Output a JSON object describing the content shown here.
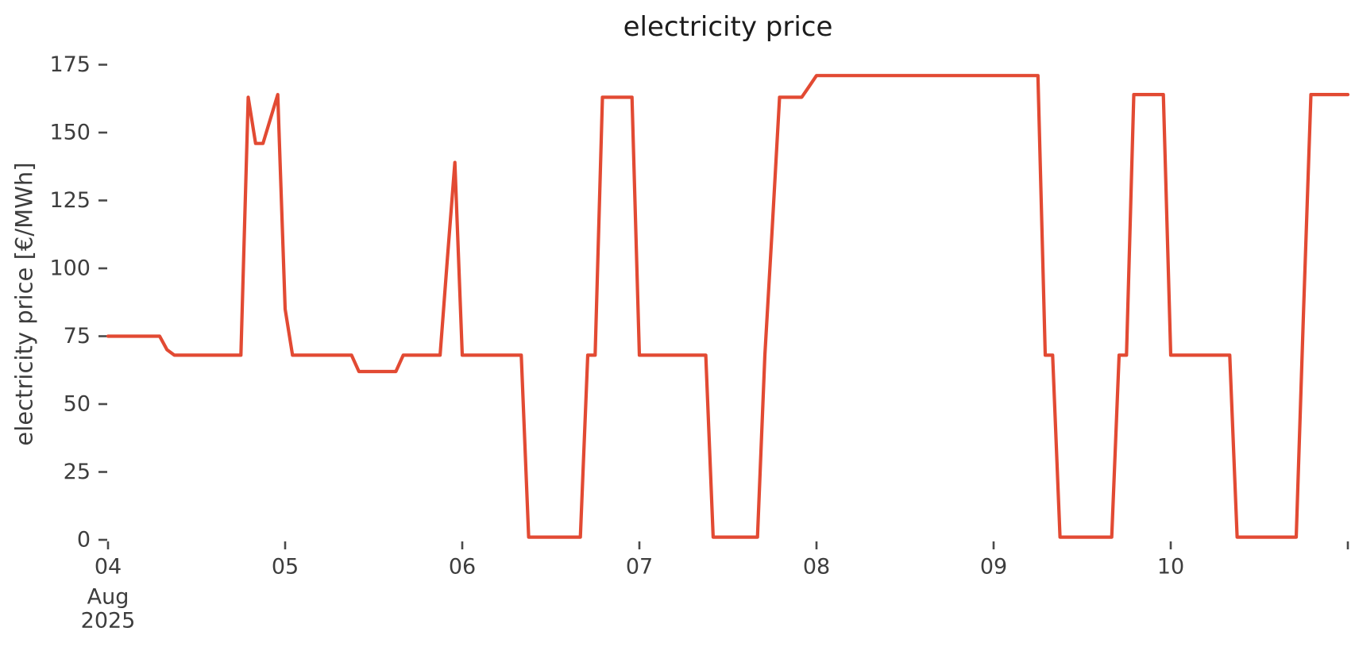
{
  "chart_data": {
    "type": "line",
    "title": "electricity price",
    "ylabel": "electricity price [€/MWh]",
    "xlabel": "",
    "grid": false,
    "legend": "none",
    "line_color": "#e24a33",
    "tick_color": "#4a4a4a",
    "text_color": "#3d3d3d",
    "title_color": "#1c1c1c",
    "background_color": "#ffffff",
    "ylim": [
      0,
      175
    ],
    "y_ticks": [
      0,
      25,
      50,
      75,
      100,
      125,
      150,
      175
    ],
    "x_axis": {
      "start": "2025-08-04 00:00",
      "end": "2025-08-11 00:00",
      "tick_labels": [
        "04",
        "05",
        "06",
        "07",
        "08",
        "09",
        "10"
      ],
      "first_tick_sublabels": [
        "Aug",
        "2025"
      ],
      "extra_unlabeled_right_tick": true,
      "frequency": "hourly"
    },
    "series": [
      {
        "name": "electricity price",
        "unit": "€/MWh",
        "days": [
          {
            "date": "2025-08-04",
            "prices": [
              75,
              75,
              75,
              75,
              75,
              75,
              75,
              75,
              70,
              68,
              68,
              68,
              68,
              68,
              68,
              68,
              68,
              68,
              68,
              163,
              146,
              146,
              155,
              164
            ]
          },
          {
            "date": "2025-08-05",
            "prices": [
              85,
              68,
              68,
              68,
              68,
              68,
              68,
              68,
              68,
              68,
              62,
              62,
              62,
              62,
              62,
              62,
              68,
              68,
              68,
              68,
              68,
              68,
              104,
              139
            ]
          },
          {
            "date": "2025-08-06",
            "prices": [
              68,
              68,
              68,
              68,
              68,
              68,
              68,
              68,
              68,
              1,
              1,
              1,
              1,
              1,
              1,
              1,
              1,
              68,
              68,
              163,
              163,
              163,
              163,
              163
            ]
          },
          {
            "date": "2025-08-07",
            "prices": [
              68,
              68,
              68,
              68,
              68,
              68,
              68,
              68,
              68,
              68,
              1,
              1,
              1,
              1,
              1,
              1,
              1,
              68,
              115,
              163,
              163,
              163,
              163,
              167
            ]
          },
          {
            "date": "2025-08-08",
            "prices": [
              171,
              171,
              171,
              171,
              171,
              171,
              171,
              171,
              171,
              171,
              171,
              171,
              171,
              171,
              171,
              171,
              171,
              171,
              171,
              171,
              171,
              171,
              171,
              171
            ]
          },
          {
            "date": "2025-08-09",
            "prices": [
              171,
              171,
              171,
              171,
              171,
              171,
              171,
              68,
              68,
              1,
              1,
              1,
              1,
              1,
              1,
              1,
              1,
              68,
              68,
              164,
              164,
              164,
              164,
              164
            ]
          },
          {
            "date": "2025-08-10",
            "prices": [
              68,
              68,
              68,
              68,
              68,
              68,
              68,
              68,
              68,
              1,
              1,
              1,
              1,
              1,
              1,
              1,
              1,
              1,
              85,
              164,
              164,
              164,
              164,
              164
            ]
          }
        ],
        "end_point": {
          "date": "2025-08-11 00:00",
          "price": 164
        }
      }
    ]
  }
}
